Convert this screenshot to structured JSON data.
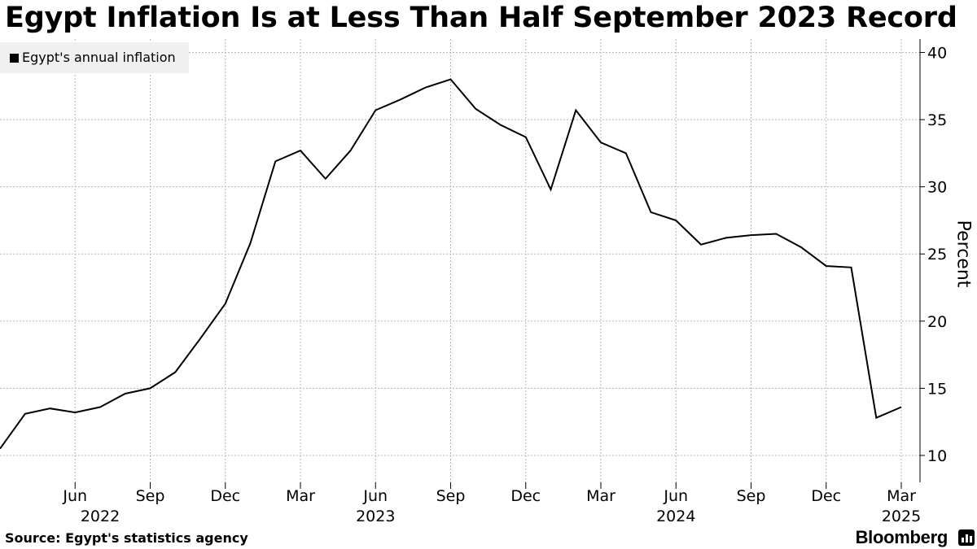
{
  "title": "Egypt Inflation Is at Less Than Half September 2023 Record",
  "source": "Source: Egypt's statistics agency",
  "brand": "Bloomberg",
  "chart_data": {
    "type": "line",
    "ylabel": "Percent",
    "ylim": [
      8,
      41
    ],
    "yticks": [
      10,
      15,
      20,
      25,
      30,
      35,
      40
    ],
    "y_axis_side": "right",
    "grid": true,
    "legend": "top-left",
    "x_tick_labels": [
      "Jun",
      "Sep",
      "Dec",
      "Mar",
      "Jun",
      "Sep",
      "Dec",
      "Mar",
      "Jun",
      "Sep",
      "Dec",
      "Mar"
    ],
    "x_ticks": [
      "2022-06",
      "2022-09",
      "2022-12",
      "2023-03",
      "2023-06",
      "2023-09",
      "2023-12",
      "2024-03",
      "2024-06",
      "2024-09",
      "2024-12",
      "2025-03"
    ],
    "x_year_labels": [
      {
        "label": "2022",
        "month": "2022-07"
      },
      {
        "label": "2023",
        "month": "2023-06"
      },
      {
        "label": "2024",
        "month": "2024-06"
      },
      {
        "label": "2025",
        "month": "2025-03"
      }
    ],
    "x_range": [
      "2022-03",
      "2025-03"
    ],
    "series": [
      {
        "name": "Egypt's annual inflation",
        "color": "#000000",
        "x": [
          "2022-03",
          "2022-04",
          "2022-05",
          "2022-06",
          "2022-07",
          "2022-08",
          "2022-09",
          "2022-10",
          "2022-11",
          "2022-12",
          "2023-01",
          "2023-02",
          "2023-03",
          "2023-04",
          "2023-05",
          "2023-06",
          "2023-07",
          "2023-08",
          "2023-09",
          "2023-10",
          "2023-11",
          "2023-12",
          "2024-01",
          "2024-02",
          "2024-03",
          "2024-04",
          "2024-05",
          "2024-06",
          "2024-07",
          "2024-08",
          "2024-09",
          "2024-10",
          "2024-11",
          "2024-12",
          "2025-01",
          "2025-02",
          "2025-03"
        ],
        "values": [
          10.5,
          13.1,
          13.5,
          13.2,
          13.6,
          14.6,
          15.0,
          16.2,
          18.7,
          21.3,
          25.8,
          31.9,
          32.7,
          30.6,
          32.7,
          35.7,
          36.5,
          37.4,
          38.0,
          35.8,
          34.6,
          33.7,
          29.8,
          35.7,
          33.3,
          32.5,
          28.1,
          27.5,
          25.7,
          26.2,
          26.4,
          26.5,
          25.5,
          24.1,
          24.0,
          12.8,
          13.6
        ]
      }
    ]
  }
}
